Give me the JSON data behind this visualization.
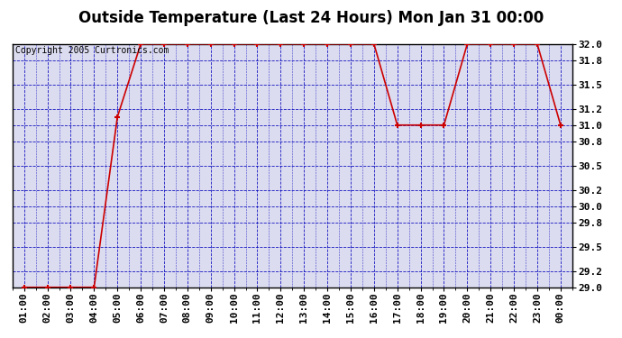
{
  "title": "Outside Temperature (Last 24 Hours) Mon Jan 31 00:00",
  "copyright_text": "Copyright 2005 Curtronics.com",
  "x_labels": [
    "01:00",
    "02:00",
    "03:00",
    "04:00",
    "05:00",
    "06:00",
    "07:00",
    "08:00",
    "09:00",
    "10:00",
    "11:00",
    "12:00",
    "13:00",
    "14:00",
    "15:00",
    "16:00",
    "17:00",
    "18:00",
    "19:00",
    "20:00",
    "21:00",
    "22:00",
    "23:00",
    "00:00"
  ],
  "x_values": [
    1,
    2,
    3,
    4,
    5,
    6,
    7,
    8,
    9,
    10,
    11,
    12,
    13,
    14,
    15,
    16,
    17,
    18,
    19,
    20,
    21,
    22,
    23,
    24
  ],
  "y_values": [
    29.0,
    29.0,
    29.0,
    29.0,
    31.1,
    32.0,
    32.0,
    32.0,
    32.0,
    32.0,
    32.0,
    32.0,
    32.0,
    32.0,
    32.0,
    32.0,
    31.0,
    31.0,
    31.0,
    32.0,
    32.0,
    32.0,
    32.0,
    31.0
  ],
  "ylim": [
    29.0,
    32.0
  ],
  "yticks": [
    29.0,
    29.2,
    29.5,
    29.8,
    30.0,
    30.2,
    30.5,
    30.8,
    31.0,
    31.2,
    31.5,
    31.8,
    32.0
  ],
  "ytick_labels": [
    "29.0",
    "29.2",
    "29.5",
    "29.8",
    "30.0",
    "30.2",
    "30.5",
    "30.8",
    "31.0",
    "31.2",
    "31.5",
    "31.8",
    "32.0"
  ],
  "line_color": "#cc0000",
  "marker_color": "#cc0000",
  "bg_color": "#ffffff",
  "plot_bg_color": "#dcdcf0",
  "grid_color": "#0000bb",
  "border_color": "#000000",
  "title_fontsize": 12,
  "copyright_fontsize": 7,
  "tick_fontsize": 8
}
